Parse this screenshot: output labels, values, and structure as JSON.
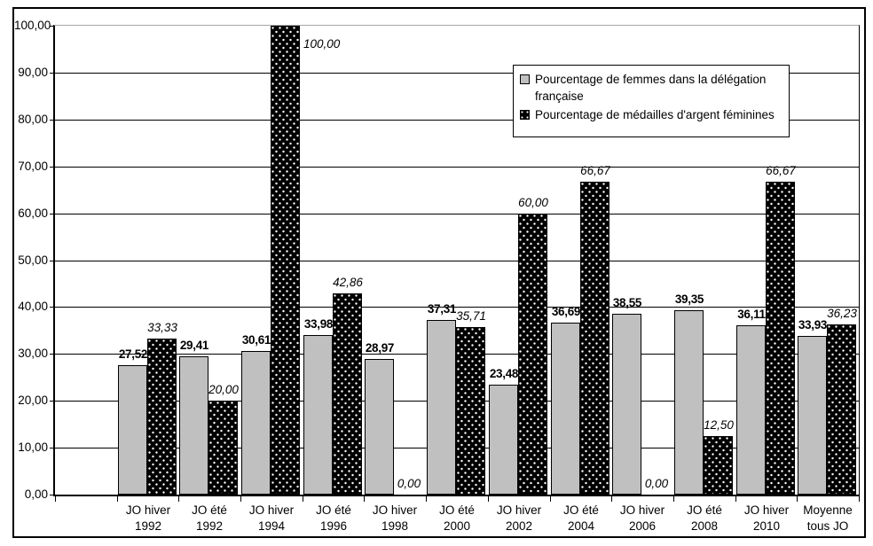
{
  "chart_data": {
    "type": "bar",
    "title": "",
    "xlabel": "",
    "ylabel": "",
    "ylim": [
      0,
      100
    ],
    "grid": true,
    "legend_position": "top-right",
    "decimal_separator": ",",
    "yticklabels": [
      "0,00",
      "10,00",
      "20,00",
      "30,00",
      "40,00",
      "50,00",
      "60,00",
      "70,00",
      "80,00",
      "90,00",
      "100,00"
    ],
    "categories": [
      [
        "JO hiver",
        "1992"
      ],
      [
        "JO été",
        "1992"
      ],
      [
        "JO hiver",
        "1994"
      ],
      [
        "JO été",
        "1996"
      ],
      [
        "JO hiver",
        "1998"
      ],
      [
        "JO été",
        "2000"
      ],
      [
        "JO hiver",
        "2002"
      ],
      [
        "JO été",
        "2004"
      ],
      [
        "JO hiver",
        "2006"
      ],
      [
        "JO été",
        "2008"
      ],
      [
        "JO hiver",
        "2010"
      ],
      [
        "Moyenne",
        "tous JO"
      ]
    ],
    "series": [
      {
        "name": "Pourcentage de femmes dans la délégation française",
        "color": "#c0c0c0",
        "pattern": "solid",
        "label_style": "bold",
        "values": [
          27.52,
          29.41,
          30.61,
          33.98,
          28.97,
          37.31,
          23.48,
          36.69,
          38.55,
          39.35,
          36.11,
          33.93
        ],
        "labels": [
          "27,52",
          "29,41",
          "30,61",
          "33,98",
          "28,97",
          "37,31",
          "23,48",
          "36,69",
          "38,55",
          "39,35",
          "36,11",
          "33,93"
        ]
      },
      {
        "name": "Pourcentage de médailles d'argent féminines",
        "color": "#000000",
        "pattern": "white-dots",
        "label_style": "italic",
        "values": [
          33.33,
          20.0,
          100.0,
          42.86,
          0.0,
          35.71,
          60.0,
          66.67,
          0.0,
          12.5,
          66.67,
          36.23
        ],
        "labels": [
          "33,33",
          "20,00",
          "100,00",
          "42,86",
          "0,00",
          "35,71",
          "60,00",
          "66,67",
          "0,00",
          "12,50",
          "66,67",
          "36,23"
        ]
      }
    ]
  }
}
